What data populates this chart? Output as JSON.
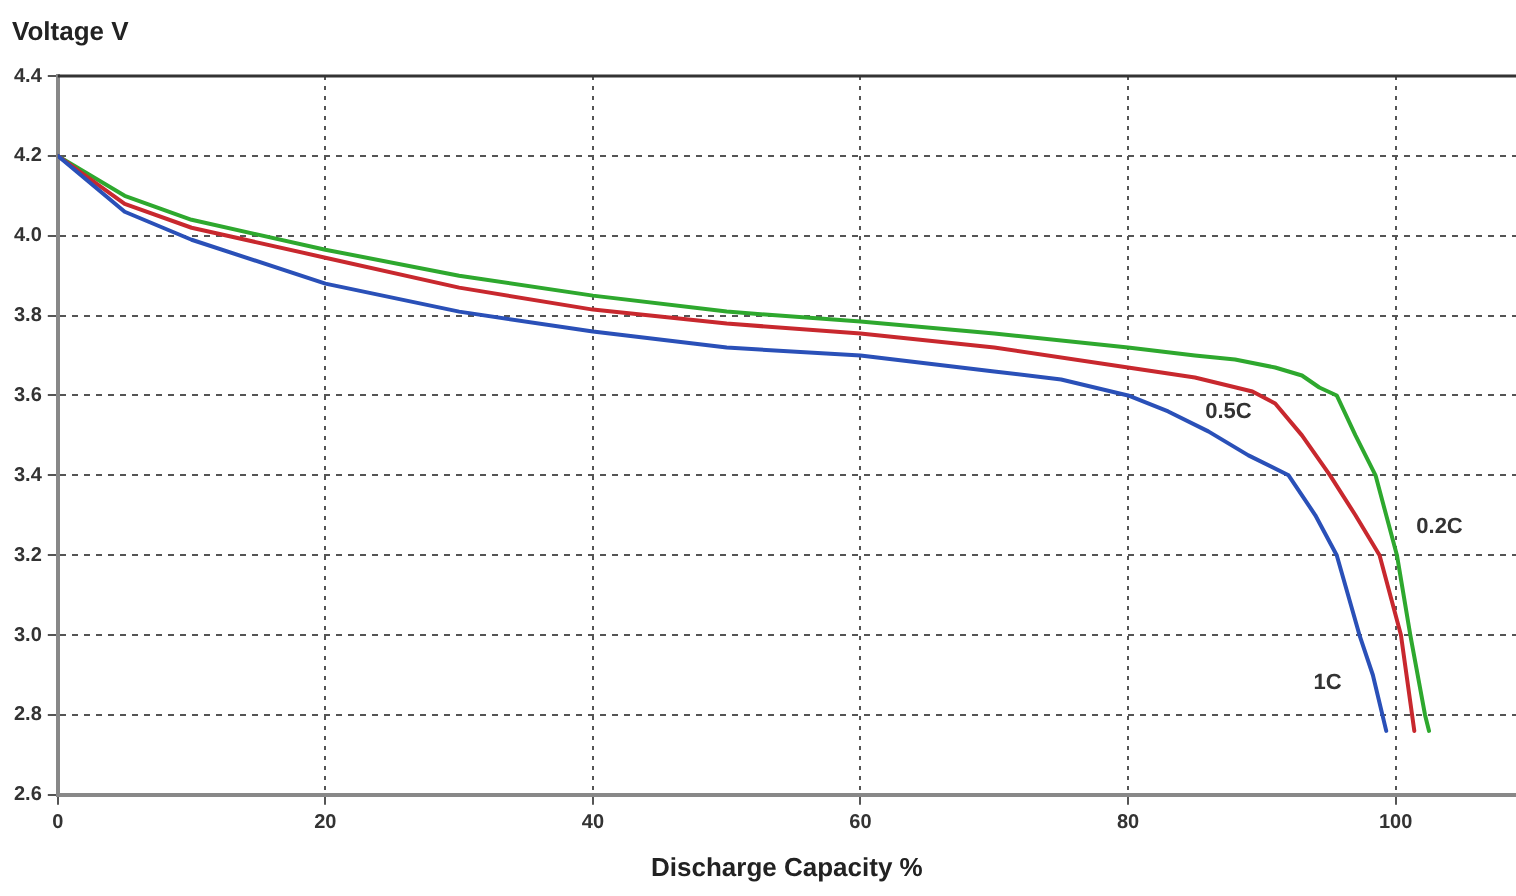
{
  "chart_data": {
    "type": "line",
    "xlabel": "Discharge Capacity %",
    "ylabel": "Voltage V",
    "xlim": [
      0,
      109
    ],
    "xticks": [
      0,
      20,
      40,
      60,
      80,
      100
    ],
    "ylim": [
      2.6,
      4.4
    ],
    "yticks": [
      {
        "value": 2.6,
        "label": "2.6"
      },
      {
        "value": 2.8,
        "label": "2.8"
      },
      {
        "value": 3.0,
        "label": "3.0"
      },
      {
        "value": 3.2,
        "label": "3.2"
      },
      {
        "value": 3.4,
        "label": "3.4"
      },
      {
        "value": 3.6,
        "label": "3.6"
      },
      {
        "value": 3.8,
        "label": "3.8"
      },
      {
        "value": 4.0,
        "label": "4.0"
      },
      {
        "value": 4.2,
        "label": "4.2"
      },
      {
        "value": 4.4,
        "label": "4.4"
      }
    ],
    "grid": true,
    "legend": false,
    "marker": "none",
    "line_style": "solid",
    "series": [
      {
        "name": "1C",
        "color": "#2a50b8",
        "x": [
          0,
          5,
          10,
          20,
          30,
          40,
          50,
          60,
          70,
          75,
          80,
          83,
          86,
          89,
          92,
          94,
          95.6,
          97.3,
          98.3,
          99.3
        ],
        "values": [
          4.2,
          4.06,
          3.99,
          3.88,
          3.81,
          3.76,
          3.72,
          3.7,
          3.66,
          3.64,
          3.6,
          3.56,
          3.51,
          3.45,
          3.4,
          3.3,
          3.2,
          3.0,
          2.9,
          2.76
        ]
      },
      {
        "name": "0.5C",
        "color": "#c8282e",
        "x": [
          0,
          5,
          10,
          20,
          30,
          40,
          50,
          60,
          70,
          80,
          85,
          89.3,
          91,
          93,
          95.1,
          97,
          98.8,
          100.4,
          101.4
        ],
        "values": [
          4.2,
          4.08,
          4.02,
          3.945,
          3.87,
          3.815,
          3.78,
          3.755,
          3.72,
          3.67,
          3.645,
          3.61,
          3.58,
          3.5,
          3.4,
          3.3,
          3.2,
          3.0,
          2.76
        ]
      },
      {
        "name": "0.2C",
        "color": "#2ea82e",
        "x": [
          0,
          5,
          10,
          20,
          30,
          40,
          50,
          60,
          70,
          80,
          85,
          88,
          91,
          93,
          94.3,
          95.6,
          97,
          98.5,
          100.1,
          101.1,
          102.2,
          102.5
        ],
        "values": [
          4.2,
          4.1,
          4.04,
          3.965,
          3.9,
          3.85,
          3.81,
          3.785,
          3.755,
          3.72,
          3.7,
          3.69,
          3.67,
          3.65,
          3.62,
          3.6,
          3.5,
          3.4,
          3.2,
          3.0,
          2.8,
          2.76
        ]
      }
    ]
  }
}
